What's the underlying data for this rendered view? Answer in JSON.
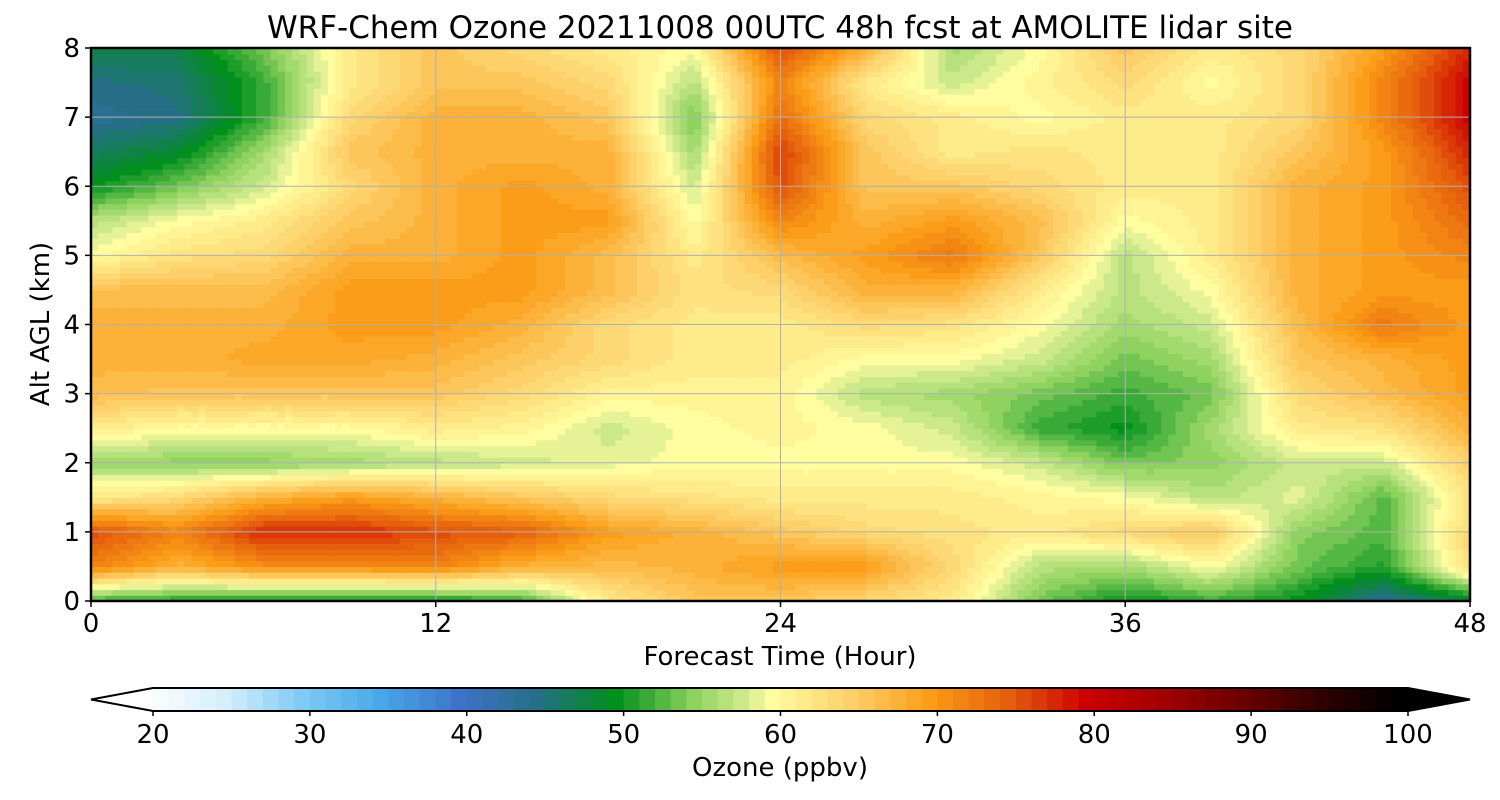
{
  "chart_data": {
    "type": "heatmap",
    "title": "WRF-Chem Ozone  20211008 00UTC 48h fcst at AMOLITE lidar site",
    "xlabel": "Forecast Time (Hour)",
    "ylabel": "Alt AGL (km)",
    "xlim": [
      0,
      48
    ],
    "ylim": [
      0,
      8
    ],
    "x_ticks": [
      "0",
      "12",
      "24",
      "36",
      "48"
    ],
    "y_ticks": [
      "0",
      "1",
      "2",
      "3",
      "4",
      "5",
      "6",
      "7",
      "8"
    ],
    "grid": true,
    "colorbar": {
      "label": "Ozone  (ppbv)",
      "range": [
        20,
        100
      ],
      "extend": "both",
      "ticks": [
        "20",
        "30",
        "40",
        "50",
        "60",
        "70",
        "80",
        "90",
        "100"
      ],
      "color_stops": [
        [
          20,
          "#ffffff"
        ],
        [
          25,
          "#d6effb"
        ],
        [
          30,
          "#7fcbf4"
        ],
        [
          35,
          "#4aa8e8"
        ],
        [
          40,
          "#3d73c8"
        ],
        [
          45,
          "#266f86"
        ],
        [
          50,
          "#00901b"
        ],
        [
          55,
          "#8fd260"
        ],
        [
          58,
          "#cbe98b"
        ],
        [
          60,
          "#fffda0"
        ],
        [
          65,
          "#fdd06a"
        ],
        [
          70,
          "#fb9d18"
        ],
        [
          75,
          "#e55f0c"
        ],
        [
          80,
          "#cc0000"
        ],
        [
          85,
          "#a00000"
        ],
        [
          90,
          "#6a0000"
        ],
        [
          95,
          "#300000"
        ],
        [
          100,
          "#000000"
        ]
      ]
    },
    "x": [
      0,
      3,
      6,
      9,
      12,
      15,
      18,
      21,
      24,
      27,
      30,
      33,
      36,
      39,
      42,
      45,
      48
    ],
    "y": [
      0,
      0.5,
      1,
      1.5,
      2,
      2.5,
      3,
      3.5,
      4,
      4.5,
      5,
      5.5,
      6,
      6.5,
      7,
      7.5,
      8
    ],
    "z": [
      [
        52,
        51,
        50,
        50,
        50,
        52,
        62,
        66,
        66,
        64,
        62,
        54,
        50,
        52,
        50,
        44,
        48
      ],
      [
        72,
        68,
        71,
        71,
        72,
        68,
        67,
        68,
        70,
        70,
        64,
        57,
        56,
        60,
        54,
        51,
        64
      ],
      [
        76,
        72,
        78,
        78,
        76,
        75,
        70,
        68,
        66,
        64,
        63,
        62,
        64,
        66,
        55,
        53,
        64
      ],
      [
        62,
        64,
        68,
        70,
        68,
        66,
        64,
        63,
        62,
        62,
        62,
        61,
        60,
        57,
        59,
        53,
        63
      ],
      [
        56,
        55,
        55,
        56,
        57,
        58,
        59,
        60,
        60,
        60,
        60,
        58,
        54,
        55,
        58,
        58,
        65
      ],
      [
        62,
        60,
        60,
        60,
        62,
        61,
        58,
        60,
        61,
        60,
        58,
        52,
        50,
        56,
        62,
        63,
        68
      ],
      [
        67,
        66,
        66,
        66,
        66,
        64,
        61,
        61,
        61,
        57,
        56,
        54,
        52,
        54,
        64,
        67,
        70
      ],
      [
        68,
        68,
        69,
        69,
        68,
        66,
        64,
        62,
        62,
        60,
        60,
        58,
        54,
        56,
        66,
        68,
        70
      ],
      [
        68,
        68,
        68,
        70,
        70,
        68,
        64,
        62,
        62,
        64,
        63,
        60,
        56,
        58,
        67,
        73,
        70
      ],
      [
        67,
        67,
        67,
        70,
        70,
        70,
        67,
        63,
        64,
        68,
        68,
        62,
        57,
        60,
        68,
        70,
        70
      ],
      [
        60,
        63,
        64,
        68,
        68,
        70,
        67,
        62,
        67,
        70,
        73,
        66,
        57,
        62,
        68,
        70,
        72
      ],
      [
        57,
        60,
        62,
        66,
        68,
        70,
        70,
        60,
        72,
        68,
        70,
        67,
        60,
        62,
        68,
        70,
        74
      ],
      [
        50,
        54,
        58,
        64,
        68,
        70,
        68,
        58,
        76,
        66,
        66,
        64,
        62,
        62,
        68,
        70,
        76
      ],
      [
        47,
        49,
        56,
        66,
        68,
        68,
        68,
        56,
        77,
        66,
        62,
        63,
        62,
        62,
        66,
        70,
        78
      ],
      [
        44,
        45,
        52,
        64,
        68,
        68,
        66,
        54,
        74,
        64,
        62,
        60,
        62,
        62,
        64,
        72,
        80
      ],
      [
        45,
        46,
        52,
        62,
        66,
        66,
        64,
        57,
        72,
        62,
        58,
        61,
        64,
        60,
        64,
        72,
        80
      ],
      [
        48,
        48,
        54,
        62,
        66,
        64,
        62,
        60,
        76,
        68,
        56,
        60,
        66,
        62,
        64,
        70,
        78
      ]
    ]
  }
}
